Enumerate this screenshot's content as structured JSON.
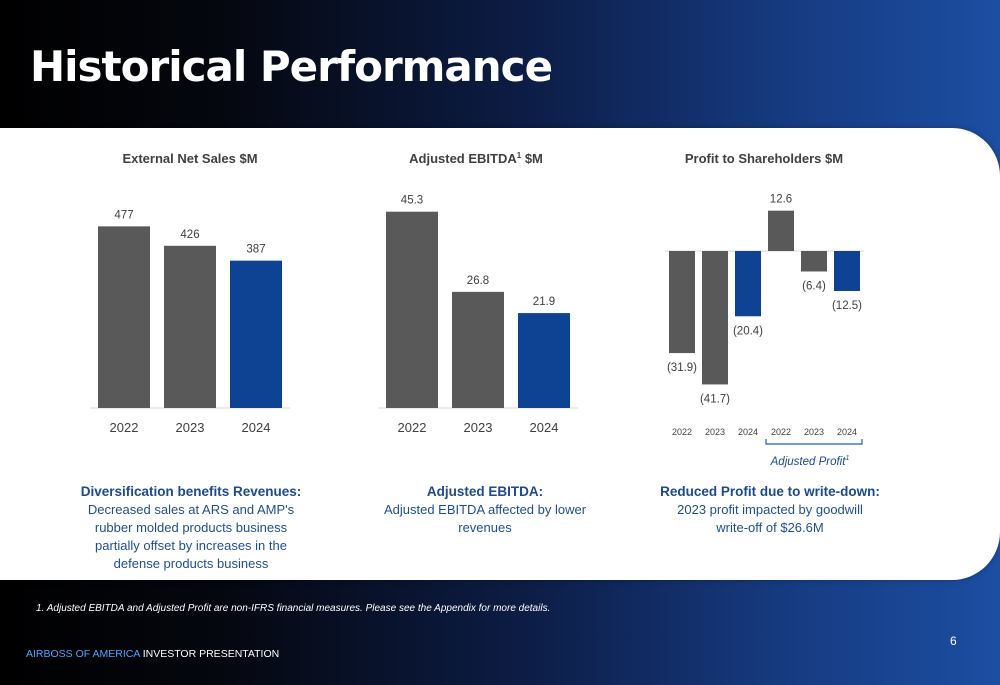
{
  "page": {
    "title": "Historical Performance",
    "footnote": "1. Adjusted EBITDA and Adjusted Profit are non-IFRS financial measures. Please see the Appendix for more details.",
    "footer_brand": "AIRBOSS OF AMERICA",
    "footer_rest": " INVESTOR PRESENTATION",
    "page_number": "6"
  },
  "colors": {
    "gray_bar": "#595959",
    "blue_bar": "#0e4394",
    "navy_text": "#1c4a8c"
  },
  "descriptions": [
    {
      "head": "Diversification benefits Revenues:",
      "body": "Decreased sales at ARS and AMP's rubber molded products business partially offset by increases in the defense products business"
    },
    {
      "head": "Adjusted EBITDA:",
      "body": "Adjusted EBITDA affected by lower revenues"
    },
    {
      "head": "Reduced Profit due to write-down:",
      "body": "2023 profit impacted by goodwill write-off of $26.6M"
    }
  ],
  "chart_data": [
    {
      "type": "bar",
      "title": "External Net Sales $M",
      "categories": [
        "2022",
        "2023",
        "2024"
      ],
      "values": [
        477,
        426,
        387
      ],
      "labels": [
        "477",
        "426",
        "387"
      ],
      "highlight_last": true,
      "ylim": [
        0,
        520
      ]
    },
    {
      "type": "bar",
      "title": "Adjusted EBITDA",
      "title_sup": "1",
      "title_suffix": " $M",
      "categories": [
        "2022",
        "2023",
        "2024"
      ],
      "values": [
        45.3,
        26.8,
        21.9
      ],
      "labels": [
        "45.3",
        "26.8",
        "21.9"
      ],
      "highlight_last": true,
      "ylim": [
        0,
        48
      ]
    },
    {
      "type": "bar",
      "title": "Profit to Shareholders $M",
      "categories": [
        "2022",
        "2023",
        "2024",
        "2022",
        "2023",
        "2024"
      ],
      "values": [
        -31.9,
        -41.7,
        -20.4,
        12.6,
        -6.4,
        -12.5
      ],
      "labels": [
        "(31.9)",
        "(41.7)",
        "(20.4)",
        "12.6",
        "(6.4)",
        "(12.5)"
      ],
      "highlight": [
        false,
        false,
        true,
        false,
        false,
        true
      ],
      "group_label": "Adjusted Profit",
      "group_label_sup": "1",
      "group_range": [
        3,
        5
      ]
    }
  ]
}
